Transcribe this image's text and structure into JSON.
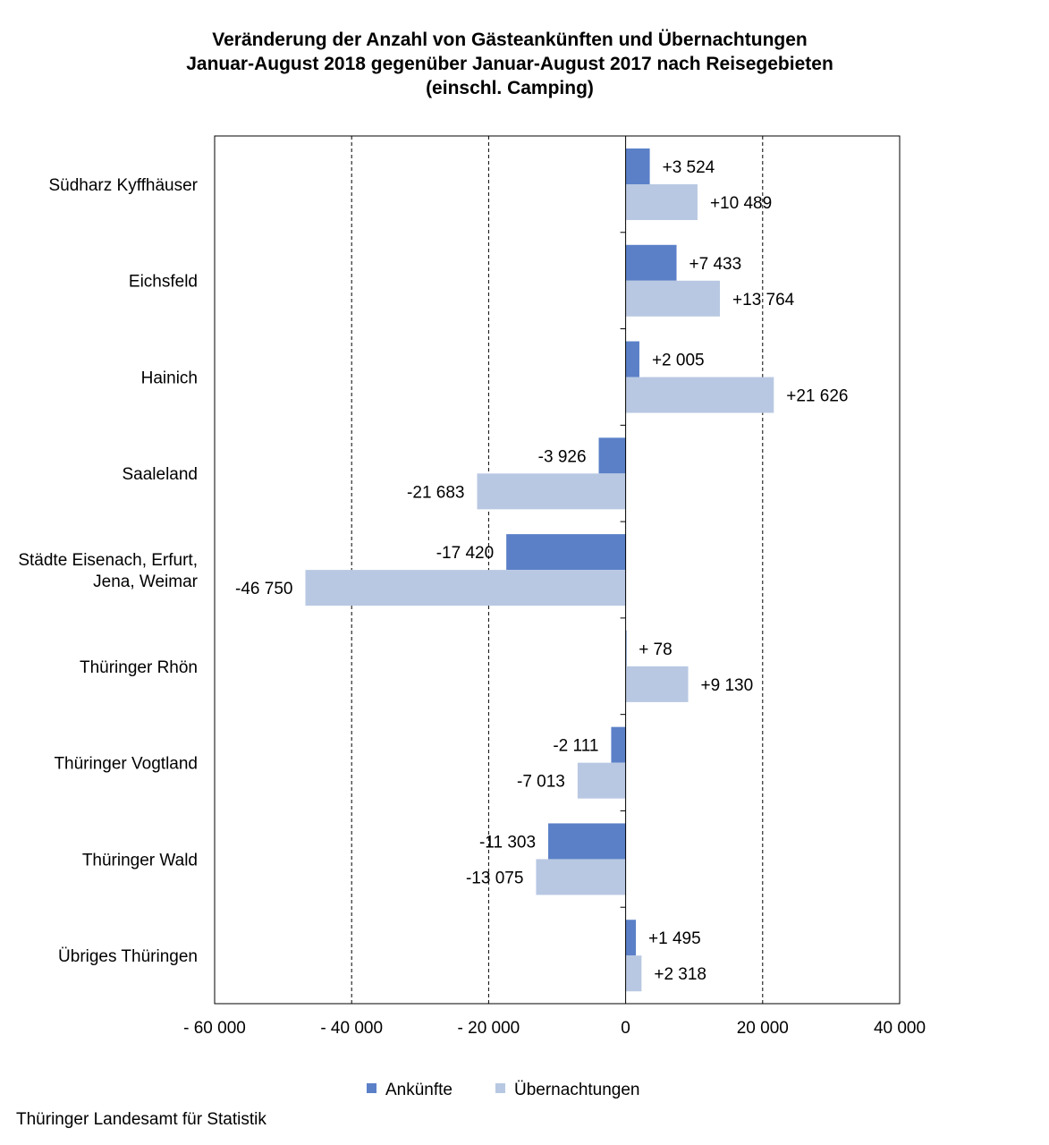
{
  "chart_data": {
    "type": "bar",
    "orientation": "horizontal",
    "title": [
      "Veränderung der Anzahl von Gästeankünften und Übernachtungen",
      "Januar-August 2018 gegenüber Januar-August 2017 nach Reisegebieten",
      "(einschl. Camping)"
    ],
    "categories": [
      "Südharz Kyffhäuser",
      "Eichsfeld",
      "Hainich",
      "Saaleland",
      "Städte Eisenach, Erfurt,\nJena, Weimar",
      "Thüringer Rhön",
      "Thüringer Vogtland",
      "Thüringer Wald",
      "Übriges Thüringen"
    ],
    "series": [
      {
        "name": "Ankünfte",
        "color": "#5b80c8",
        "values": [
          3524,
          7433,
          2005,
          -3926,
          -17420,
          78,
          -2111,
          -11303,
          1495
        ],
        "labels": [
          "+3 524",
          "+7 433",
          "+2 005",
          "-3 926",
          "-17 420",
          "+ 78",
          "-2 111",
          "-11 303",
          "+1 495"
        ]
      },
      {
        "name": "Übernachtungen",
        "color": "#b8c8e2",
        "values": [
          10489,
          13764,
          21626,
          -21683,
          -46750,
          9130,
          -7013,
          -13075,
          2318
        ],
        "labels": [
          "+10 489",
          "+13 764",
          "+21 626",
          "-21 683",
          "-46 750",
          "+9 130",
          "-7 013",
          "-13 075",
          "+2 318"
        ]
      }
    ],
    "xlim": [
      -60000,
      40000
    ],
    "xticks": [
      -60000,
      -40000,
      -20000,
      0,
      20000,
      40000
    ],
    "xtick_labels": [
      "- 60 000",
      "- 40 000",
      "- 20 000",
      "0",
      "20 000",
      "40 000"
    ],
    "grid": "vertical dashed",
    "legend": "bottom"
  },
  "source": "Thüringer Landesamt für Statistik"
}
